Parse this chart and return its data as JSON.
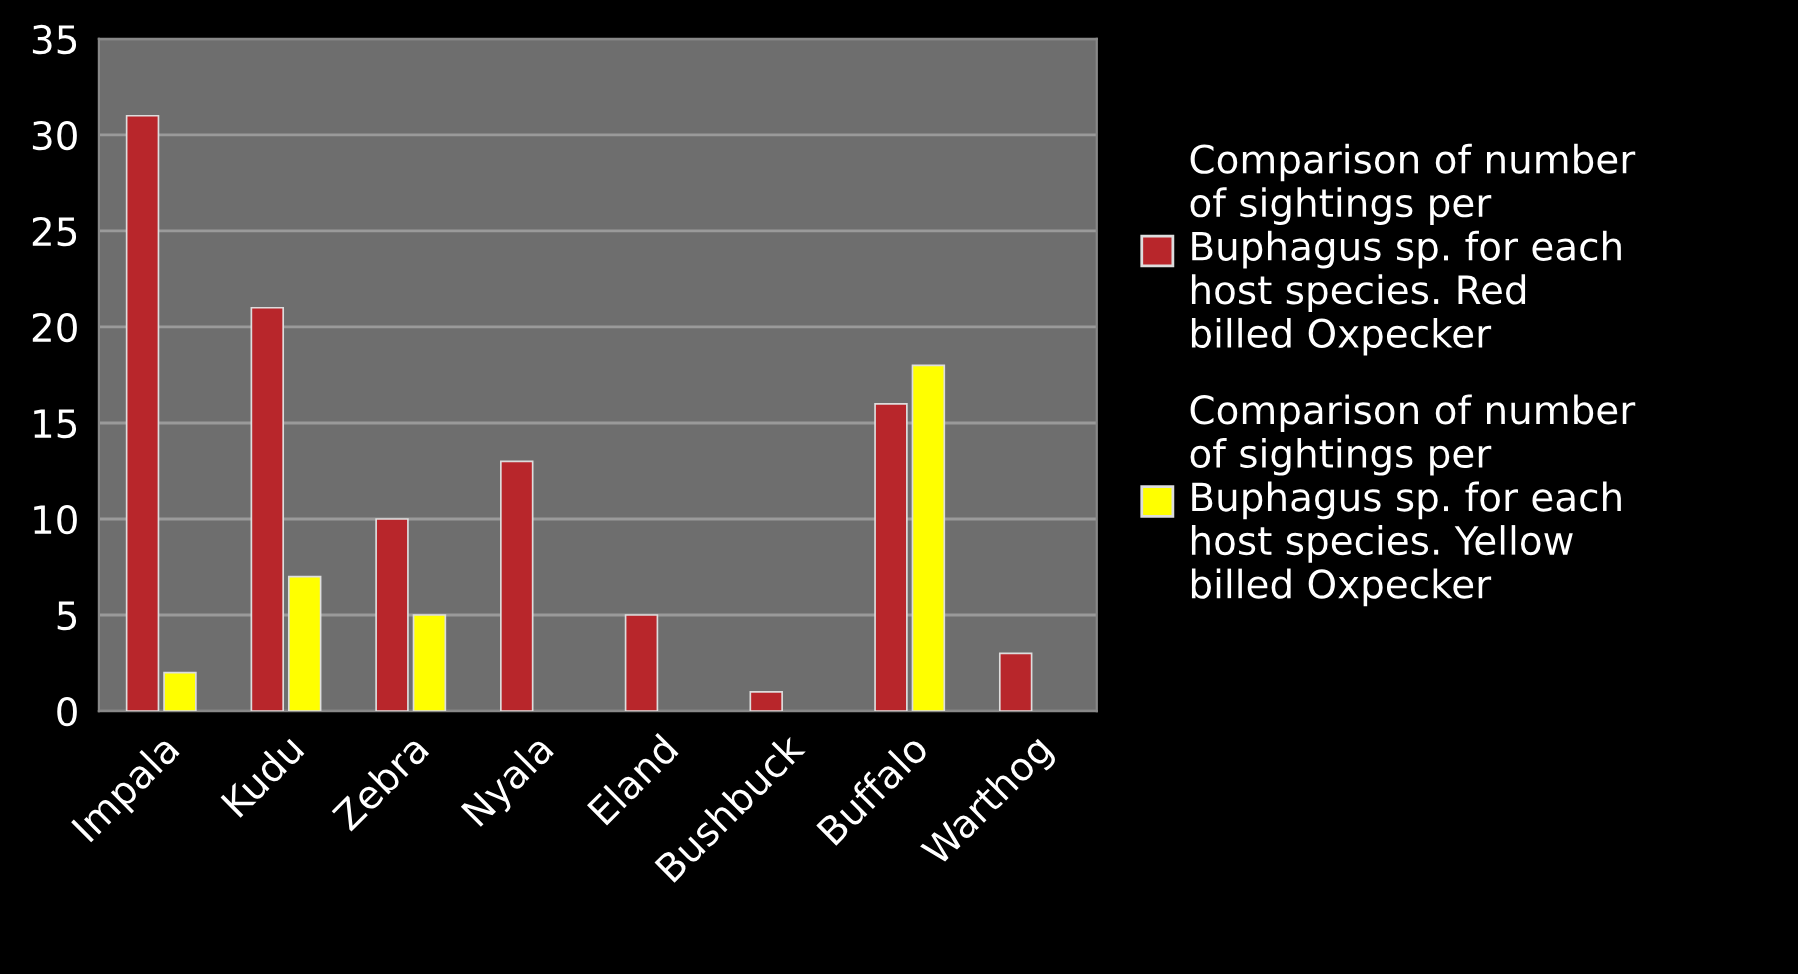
{
  "chart_data": {
    "type": "bar",
    "categories": [
      "Impala",
      "Kudu",
      "Zebra",
      "Nyala",
      "Eland",
      "Bushbuck",
      "Buffalo",
      "Warthog"
    ],
    "series": [
      {
        "name": "Comparison of number of sightings per Buphagus sp. for each host species. Red billed Oxpecker",
        "color": "#b8262b",
        "values": [
          31,
          21,
          10,
          13,
          5,
          1,
          16,
          3
        ]
      },
      {
        "name": "Comparison of number of sightings per Buphagus sp. for each host species. Yellow billed Oxpecker",
        "color": "#ffff00",
        "values": [
          2,
          7,
          5,
          null,
          null,
          null,
          18,
          null
        ]
      }
    ],
    "ylim": [
      0,
      35
    ],
    "yticks": [
      0,
      5,
      10,
      15,
      20,
      25,
      30,
      35
    ],
    "grid": "y",
    "legend": "right"
  }
}
